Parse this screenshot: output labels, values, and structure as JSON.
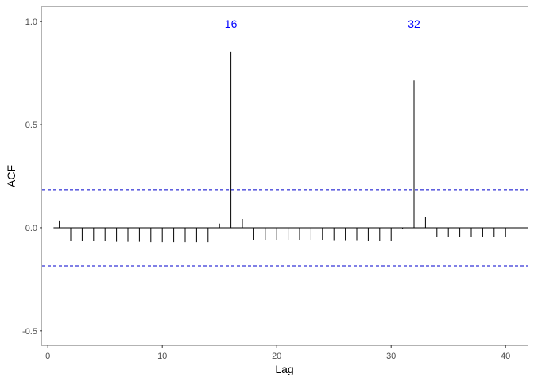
{
  "chart_data": {
    "type": "bar",
    "xlabel": "Lag",
    "ylabel": "ACF",
    "xlim": [
      -0.5,
      42
    ],
    "ylim": [
      -0.57,
      1.07
    ],
    "x_ticks": [
      0,
      10,
      20,
      30,
      40
    ],
    "y_ticks": [
      -0.5,
      0.0,
      0.5,
      1.0
    ],
    "y_tick_labels": [
      "-0.5",
      "0.0",
      "0.5",
      "1.0"
    ],
    "grid": false,
    "confidence_bound": 0.185,
    "series": [
      {
        "x": [
          1,
          2,
          3,
          4,
          5,
          6,
          7,
          8,
          9,
          10,
          11,
          12,
          13,
          14,
          15,
          16,
          17,
          18,
          19,
          20,
          21,
          22,
          23,
          24,
          25,
          26,
          27,
          28,
          29,
          30,
          31,
          32,
          33,
          34,
          35,
          36,
          37,
          38,
          39,
          40
        ],
        "values": [
          0.035,
          -0.065,
          -0.065,
          -0.065,
          -0.065,
          -0.068,
          -0.068,
          -0.068,
          -0.07,
          -0.07,
          -0.07,
          -0.07,
          -0.07,
          -0.07,
          0.02,
          0.855,
          0.042,
          -0.058,
          -0.058,
          -0.058,
          -0.058,
          -0.058,
          -0.058,
          -0.058,
          -0.06,
          -0.06,
          -0.06,
          -0.063,
          -0.063,
          -0.063,
          -0.005,
          0.715,
          0.05,
          -0.045,
          -0.045,
          -0.045,
          -0.045,
          -0.045,
          -0.045,
          -0.045
        ]
      }
    ],
    "annotations": [
      {
        "text": "16",
        "x": 16,
        "y": 0.99
      },
      {
        "text": "32",
        "x": 32,
        "y": 0.99
      }
    ],
    "colors": {
      "bars": "#000000",
      "bounds": "#0000cc",
      "annotations": "#0000ff",
      "panel_border": "#b3b3b3",
      "zero_line": "#000000"
    }
  }
}
